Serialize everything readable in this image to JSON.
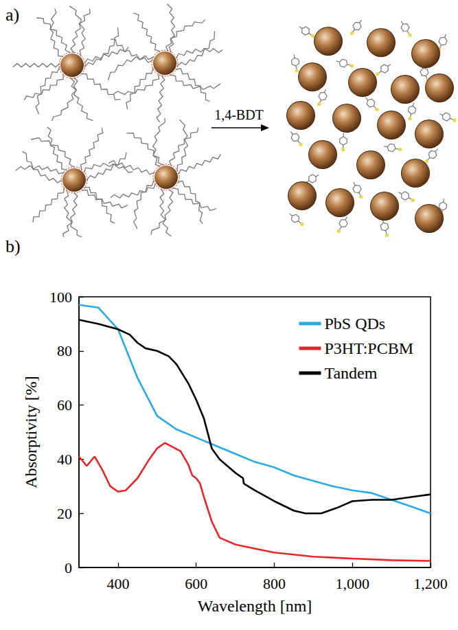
{
  "panel_labels": [
    "a)",
    "b)"
  ],
  "diagram": {
    "arrow_label": "1,4-BDT"
  },
  "chart_data": {
    "type": "line",
    "x_label": "Wavelength [nm]",
    "y_label": "Absorptivity [%]",
    "xlim": [
      300,
      1200
    ],
    "ylim": [
      0,
      100
    ],
    "xticks": [
      400,
      600,
      800,
      {
        "value": 1000,
        "label": "1,000"
      },
      {
        "value": 1200,
        "label": "1,200"
      }
    ],
    "yticks": [
      0,
      20,
      40,
      60,
      80,
      100
    ],
    "grid": false,
    "legend": "upper right",
    "series": [
      {
        "name": "PbS QDs",
        "color": "#29abe2",
        "x": [
          300,
          350,
          400,
          450,
          500,
          550,
          600,
          650,
          700,
          750,
          800,
          850,
          900,
          950,
          1000,
          1050,
          1100,
          1150,
          1200
        ],
        "values": [
          97,
          96,
          88,
          70,
          56,
          51,
          48,
          45,
          42,
          39,
          37,
          34,
          32,
          30,
          28.5,
          27.5,
          25,
          22.5,
          20
        ]
      },
      {
        "name": "P3HT:PCBM",
        "color": "#e8262a",
        "x": [
          300,
          320,
          340,
          360,
          380,
          400,
          420,
          450,
          480,
          500,
          520,
          540,
          560,
          580,
          590,
          600,
          610,
          620,
          640,
          660,
          700,
          750,
          800,
          900,
          1000,
          1100,
          1200
        ],
        "values": [
          41,
          37.5,
          41,
          36,
          30,
          28,
          28.5,
          33,
          40,
          44,
          46,
          44.5,
          43,
          38,
          34,
          33,
          31,
          26,
          17,
          11,
          8.5,
          7,
          5.5,
          4,
          3.3,
          2.7,
          2.4
        ]
      },
      {
        "name": "Tandem",
        "color": "#000000",
        "x": [
          300,
          350,
          400,
          430,
          450,
          470,
          500,
          530,
          550,
          580,
          600,
          620,
          640,
          660,
          700,
          720,
          722,
          750,
          800,
          850,
          880,
          920,
          960,
          1000,
          1050,
          1100,
          1150,
          1200
        ],
        "values": [
          91.5,
          90,
          88,
          86,
          83,
          81,
          80,
          78,
          75,
          68,
          62,
          55,
          44,
          40,
          35,
          33,
          31,
          28.5,
          24.5,
          21,
          20,
          20,
          22,
          24.5,
          25,
          25,
          26,
          27
        ]
      }
    ]
  }
}
